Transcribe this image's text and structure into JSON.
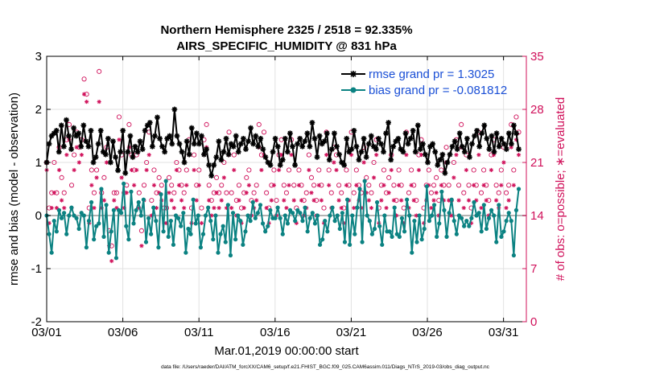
{
  "chart_data": {
    "type": "line",
    "title_line1": "Northern Hemisphere 2325 / 2518 = 92.335%",
    "title_line2": "AIRS_SPECIFIC_HUMIDITY @ 831 hPa",
    "xlabel": "Mar.01,2019 00:00:00 start",
    "ylabel_left": "rmse and bias (model - observation)",
    "ylabel_right": "# of obs: o=possible; ∗=evaluated",
    "footnote": "data file: /Users/raeder/DAI/ATM_forcXX/CAM6_setup/f.e21.FHIST_BGC.f09_025.CAM6assim.011/Diags_NTrS_2019-03/obs_diag_output.nc",
    "xlim": [
      0,
      31.5
    ],
    "ylim_left": [
      -2,
      3
    ],
    "ylim_right": [
      0,
      35
    ],
    "x_ticks": [
      0,
      5,
      10,
      15,
      20,
      25,
      30
    ],
    "x_tick_labels": [
      "03/01",
      "03/06",
      "03/11",
      "03/16",
      "03/21",
      "03/26",
      "03/31"
    ],
    "y_left_ticks": [
      -2,
      -1,
      0,
      1,
      2,
      3
    ],
    "y_left_tick_labels": [
      "-2",
      "-1",
      "0",
      "1",
      "2",
      "3"
    ],
    "y_right_ticks": [
      0,
      7,
      14,
      21,
      28,
      35
    ],
    "y_right_tick_labels": [
      "0",
      "7",
      "14",
      "21",
      "28",
      "35"
    ],
    "zero_line_y": 0,
    "colors": {
      "rmse": "#000000",
      "bias": "#0b8282",
      "obs": "#d0105a",
      "legend_text": "#1a4fd6",
      "grid": "#e2e2e2",
      "zero_line": "#b4b4b4"
    },
    "series": [
      {
        "name": "rmse grand pr = 1.3025",
        "axis": "left",
        "marker": "asterisk",
        "values": [
          1.0,
          1.35,
          1.5,
          1.55,
          1.6,
          1.2,
          1.7,
          1.3,
          1.8,
          1.5,
          1.25,
          1.65,
          1.5,
          1.55,
          1.3,
          1.7,
          1.4,
          1.3,
          1.6,
          1.0,
          1.1,
          1.35,
          1.6,
          1.2,
          1.15,
          1.45,
          1.0,
          1.4,
          1.1,
          0.85,
          1.2,
          1.6,
          0.8,
          1.2,
          1.5,
          1.1,
          1.3,
          1.2,
          1.4,
          1.25,
          1.6,
          1.7,
          1.75,
          1.3,
          1.5,
          1.85,
          1.45,
          1.3,
          1.2,
          1.45,
          1.5,
          1.35,
          2.0,
          1.5,
          1.35,
          1.2,
          1.0,
          1.4,
          1.15,
          1.65,
          1.35,
          1.55,
          1.35,
          1.5,
          1.15,
          1.25,
          0.95,
          0.75,
          0.95,
          1.1,
          1.4,
          1.05,
          1.2,
          1.45,
          1.15,
          1.35,
          1.3,
          1.5,
          1.2,
          1.35,
          1.45,
          1.25,
          1.4,
          1.65,
          1.35,
          1.5,
          1.3,
          1.45,
          1.25,
          1.1,
          1.0,
          0.95,
          1.2,
          1.45,
          1.3,
          0.95,
          1.05,
          1.45,
          1.2,
          1.55,
          1.3,
          0.95,
          1.35,
          1.45,
          1.3,
          1.4,
          1.55,
          1.3,
          1.75,
          1.45,
          1.1,
          1.5,
          1.35,
          1.4,
          1.55,
          1.05,
          1.25,
          1.55,
          1.3,
          1.15,
          1.0,
          0.95,
          1.45,
          1.2,
          1.25,
          1.6,
          1.3,
          1.05,
          1.2,
          1.45,
          1.1,
          1.35,
          1.5,
          1.3,
          1.25,
          1.45,
          1.35,
          1.2,
          1.55,
          1.75,
          1.05,
          1.3,
          1.4,
          1.45,
          1.25,
          1.2,
          1.55,
          1.35,
          1.45,
          1.6,
          1.2,
          1.7,
          1.25,
          1.35,
          1.15,
          1.0,
          1.3,
          1.35,
          1.2,
          0.95,
          1.05,
          1.15,
          0.8,
          1.0,
          1.15,
          1.3,
          1.4,
          1.25,
          1.55,
          1.3,
          1.2,
          1.45,
          1.1,
          1.35,
          1.5,
          1.6,
          1.3,
          1.55,
          1.7,
          1.45,
          1.25,
          1.5,
          1.2,
          1.55,
          1.3,
          1.45,
          1.35,
          1.25,
          1.55,
          1.35,
          1.7,
          1.55,
          1.25
        ]
      },
      {
        "name": "bias grand pr = -0.081812",
        "axis": "left",
        "marker": "dot",
        "values": [
          0.0,
          -0.35,
          -0.7,
          -0.1,
          -0.3,
          0.1,
          -0.05,
          0.05,
          -0.35,
          0.0,
          0.15,
          0.0,
          -0.05,
          -0.25,
          0.05,
          0.0,
          -0.6,
          -0.1,
          0.25,
          -0.45,
          -0.2,
          -0.15,
          0.5,
          -0.4,
          0.2,
          -0.7,
          -0.3,
          0.1,
          -0.8,
          0.1,
          0.05,
          0.6,
          -0.2,
          -0.45,
          0.45,
          -0.15,
          0.1,
          0.25,
          0.0,
          0.3,
          -0.5,
          -0.05,
          -0.35,
          0.15,
          -0.1,
          -0.6,
          0.4,
          -0.3,
          0.65,
          -0.4,
          -0.1,
          -0.55,
          0.0,
          -0.05,
          -0.2,
          0.05,
          -0.7,
          -0.25,
          -0.35,
          0.3,
          -0.15,
          0.0,
          -0.6,
          -0.35,
          0.0,
          0.15,
          -0.1,
          -0.45,
          0.0,
          -0.7,
          -0.35,
          -0.2,
          -0.5,
          0.2,
          -0.75,
          0.05,
          -0.45,
          0.0,
          -0.1,
          -0.55,
          -0.3,
          0.0,
          -0.1,
          0.25,
          -0.05,
          0.05,
          0.2,
          -0.15,
          -0.3,
          -0.2,
          0.1,
          -0.05,
          -0.05,
          0.15,
          -0.05,
          -0.35,
          0.0,
          -0.15,
          0.1,
          0.05,
          -0.1,
          0.1,
          0.05,
          -0.1,
          0.15,
          -0.3,
          -0.05,
          0.05,
          -0.15,
          0.0,
          -0.55,
          -0.45,
          -0.1,
          -0.3,
          0.0,
          0.15,
          -0.1,
          0.0,
          -0.25,
          0.05,
          -0.5,
          0.3,
          -0.55,
          0.0,
          -0.35,
          0.15,
          0.5,
          -0.5,
          0.65,
          0.0,
          -0.1,
          -0.35,
          -0.25,
          0.25,
          -0.2,
          -0.55,
          0.0,
          -0.3,
          -0.3,
          -0.4,
          0.15,
          -0.35,
          -0.4,
          -0.05,
          -0.3,
          0.3,
          0.0,
          -0.7,
          -0.1,
          -0.5,
          0.0,
          -0.45,
          -0.25,
          0.55,
          -0.1,
          0.0,
          0.2,
          -0.4,
          -0.15,
          0.45,
          0.1,
          -0.4,
          0.05,
          0.3,
          -0.1,
          -0.35,
          0.0,
          -0.05,
          -0.2,
          -0.1,
          -0.2,
          -0.05,
          0.25,
          0.0,
          0.05,
          -0.3,
          0.2,
          -0.25,
          -0.05,
          0.1,
          0.0,
          -0.5,
          0.2,
          -0.4,
          -0.3,
          -0.1,
          0.05,
          -0.1,
          -0.75,
          0.1,
          0.5
        ]
      },
      {
        "name": "obs possible",
        "axis": "right",
        "marker": "circle",
        "values": [
          21,
          15,
          17,
          21,
          17,
          23,
          19,
          17,
          24,
          26,
          18,
          22,
          25,
          23,
          24,
          32,
          30,
          15,
          20,
          17,
          20,
          33,
          17,
          19,
          23,
          12,
          10,
          17,
          17,
          27,
          22,
          17,
          18,
          26,
          22,
          20,
          22,
          17,
          12,
          18,
          21,
          25,
          16,
          20,
          17,
          19,
          18,
          15,
          15,
          19,
          18,
          17,
          21,
          20,
          18,
          17,
          20,
          24,
          15,
          22,
          18,
          20,
          15,
          24,
          26,
          18,
          16,
          17,
          19,
          17,
          18,
          21,
          17,
          25,
          17,
          22,
          16,
          18,
          15,
          17,
          19,
          20,
          16,
          17,
          18,
          26,
          22,
          25,
          17,
          15,
          18,
          20,
          16,
          22,
          24,
          18,
          17,
          20,
          24,
          18,
          15,
          20,
          18,
          16,
          17,
          22,
          19,
          18,
          16,
          20,
          18,
          15,
          25,
          20,
          17,
          23,
          22,
          18,
          17,
          15,
          20,
          18,
          25,
          17,
          20,
          18,
          17,
          23,
          19,
          18,
          17,
          21,
          24,
          15,
          18,
          20,
          17,
          19,
          22,
          18,
          16,
          20,
          18,
          15,
          25,
          17,
          20,
          18,
          16,
          22,
          24,
          15,
          18,
          20,
          17,
          18,
          19,
          16,
          20,
          18,
          23,
          18,
          16,
          21,
          24,
          18,
          26,
          17,
          22,
          18,
          15,
          20,
          18,
          25,
          17,
          20,
          18,
          16,
          22,
          24,
          18,
          17,
          20,
          23,
          17,
          18,
          26,
          20,
          27,
          25
        ]
      },
      {
        "name": "obs evaluated",
        "axis": "right",
        "marker": "asterisk",
        "values": [
          20,
          13,
          15,
          17,
          15,
          20,
          16,
          15,
          22,
          24,
          15,
          20,
          23,
          21,
          22,
          30,
          29,
          13,
          18,
          15,
          19,
          29,
          15,
          16,
          21,
          10,
          8,
          16,
          15,
          24,
          19,
          15,
          17,
          23,
          20,
          18,
          20,
          15,
          10,
          16,
          20,
          22,
          14,
          18,
          15,
          17,
          16,
          13,
          13,
          17,
          16,
          15,
          20,
          18,
          16,
          15,
          18,
          22,
          13,
          20,
          16,
          18,
          13,
          22,
          23,
          16,
          14,
          15,
          17,
          15,
          16,
          19,
          15,
          22,
          15,
          20,
          14,
          16,
          13,
          15,
          17,
          18,
          14,
          15,
          16,
          23,
          20,
          22,
          15,
          13,
          16,
          18,
          14,
          20,
          22,
          16,
          15,
          18,
          22,
          16,
          13,
          18,
          16,
          14,
          15,
          20,
          17,
          16,
          14,
          18,
          16,
          13,
          22,
          18,
          15,
          21,
          20,
          16,
          15,
          13,
          18,
          16,
          22,
          15,
          18,
          16,
          15,
          21,
          17,
          16,
          15,
          19,
          22,
          13,
          16,
          18,
          15,
          17,
          20,
          16,
          14,
          18,
          16,
          13,
          22,
          15,
          18,
          16,
          14,
          20,
          22,
          13,
          16,
          18,
          15,
          16,
          17,
          14,
          18,
          16,
          21,
          16,
          14,
          19,
          22,
          16,
          23,
          15,
          20,
          16,
          13,
          18,
          16,
          22,
          15,
          18,
          16,
          14,
          20,
          22,
          16,
          15,
          18,
          21,
          15,
          16,
          23,
          18,
          24,
          22
        ]
      }
    ]
  }
}
